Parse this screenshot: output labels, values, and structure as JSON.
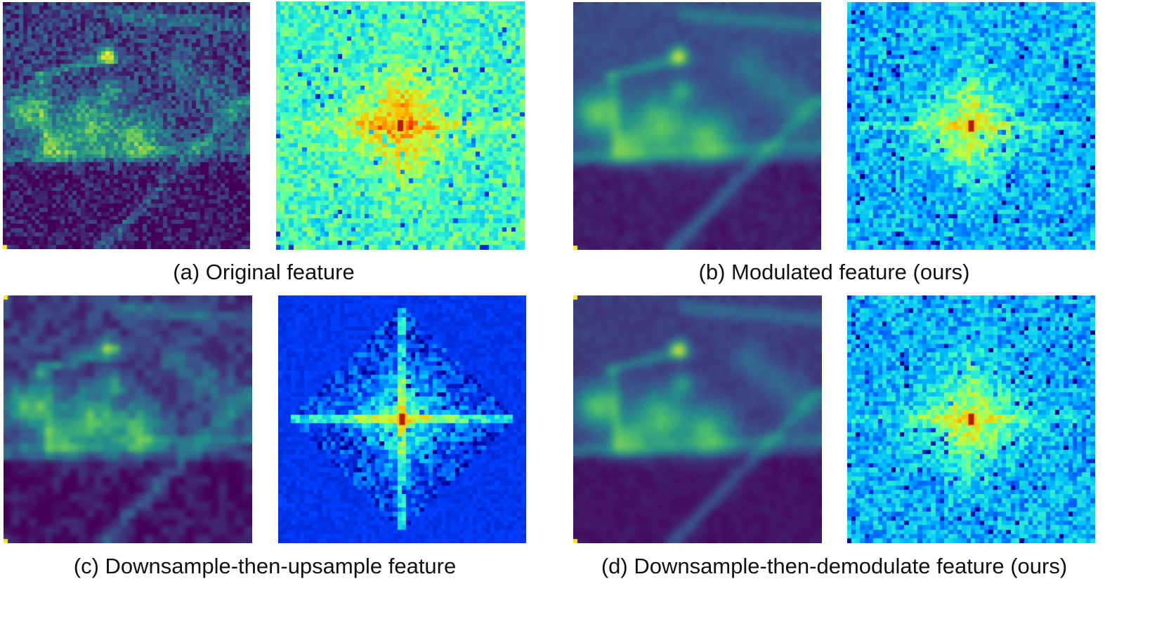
{
  "figure": {
    "panels": [
      {
        "id": "a",
        "caption": "(a) Original feature",
        "feature_style": "sharp",
        "spectrum_style": "bright",
        "spectrum_center_color": "#b41d0c"
      },
      {
        "id": "b",
        "caption": "(b) Modulated feature (ours)",
        "feature_style": "blurred-bright",
        "spectrum_style": "mid",
        "spectrum_center_color": "#b41d0c"
      },
      {
        "id": "c",
        "caption": "(c) Downsample-then-upsample feature",
        "feature_style": "blocky",
        "spectrum_style": "dark-cross",
        "spectrum_center_color": "#b41d0c"
      },
      {
        "id": "d",
        "caption": "(d) Downsample-then-demodulate feature (ours)",
        "feature_style": "smooth",
        "spectrum_style": "mid",
        "spectrum_center_color": "#b41d0c"
      }
    ],
    "feature_colormap": [
      "#440154",
      "#3b528b",
      "#21918c",
      "#5ec962",
      "#fde725"
    ],
    "spectrum_colormap": [
      "#00008f",
      "#0040ff",
      "#00bfff",
      "#40ffbf",
      "#bfff40",
      "#ffbf00",
      "#ff4000",
      "#800000"
    ]
  }
}
